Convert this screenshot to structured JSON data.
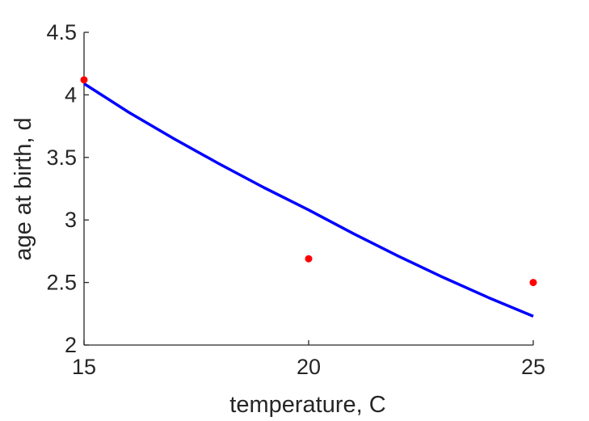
{
  "chart_data": {
    "type": "line",
    "title": "",
    "xlabel": "temperature, C",
    "ylabel": "age at birth, d",
    "xlim": [
      15,
      25
    ],
    "ylim": [
      2,
      4.5
    ],
    "xticks": [
      15,
      20,
      25
    ],
    "xtick_labels": [
      "15",
      "20",
      "25"
    ],
    "yticks": [
      2,
      2.5,
      3,
      3.5,
      4,
      4.5
    ],
    "ytick_labels": [
      "2",
      "2.5",
      "3",
      "3.5",
      "4",
      "4.5"
    ],
    "grid": false,
    "legend": "none",
    "series": [
      {
        "kind": "line",
        "color": "#0000ff",
        "x": [
          15,
          16,
          17,
          18,
          19,
          20,
          21,
          22,
          23,
          24,
          25
        ],
        "y": [
          4.09,
          3.86,
          3.65,
          3.45,
          3.26,
          3.08,
          2.89,
          2.71,
          2.54,
          2.38,
          2.23
        ]
      },
      {
        "kind": "scatter",
        "color": "#ff0000",
        "x": [
          15,
          20,
          25
        ],
        "y": [
          4.12,
          2.69,
          2.5
        ]
      }
    ]
  }
}
